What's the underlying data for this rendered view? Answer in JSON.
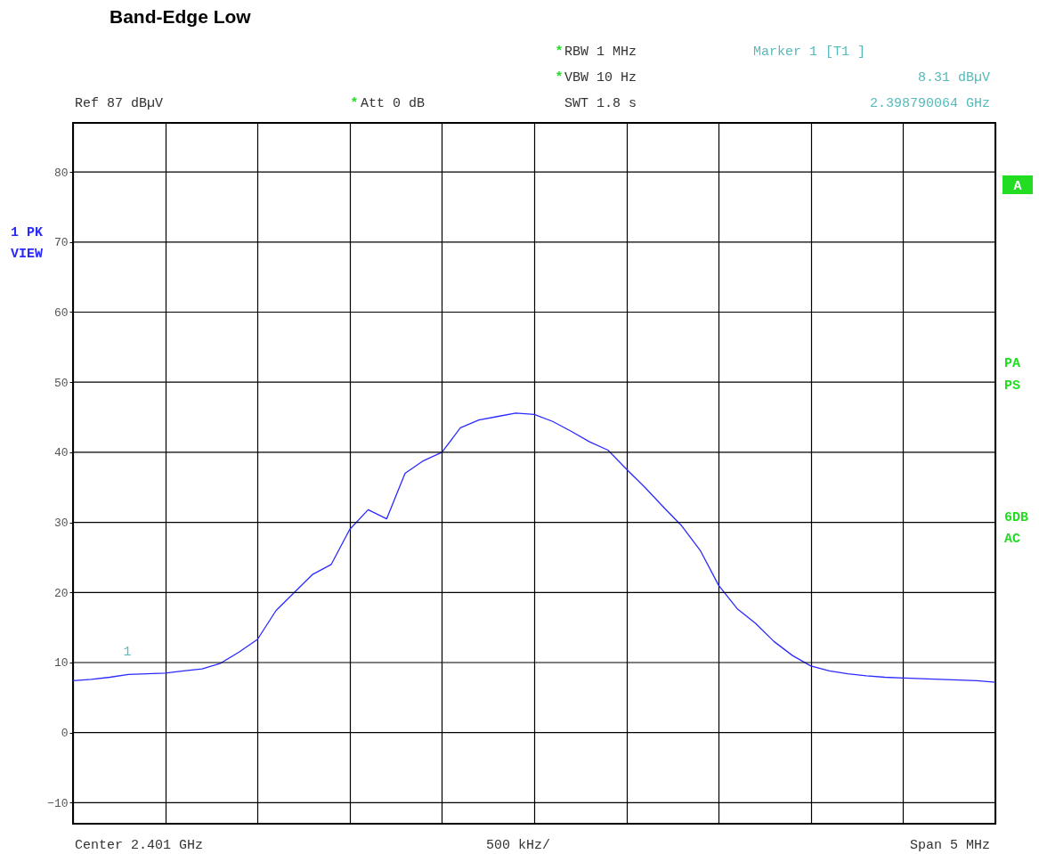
{
  "chart_data": {
    "type": "line",
    "title": "Band-Edge Low",
    "categories": [
      null,
      null,
      null,
      null,
      null,
      null,
      null,
      null,
      null,
      null,
      null,
      null,
      null,
      null,
      null,
      null,
      null,
      null,
      null,
      null,
      null,
      null,
      null,
      null,
      null,
      null,
      null,
      null,
      null,
      null,
      null,
      null,
      null,
      null,
      null,
      null,
      null,
      null,
      null,
      null,
      null,
      null,
      null,
      null,
      null,
      null,
      null,
      null,
      null,
      null,
      null
    ],
    "series": [
      {
        "color": "#2a2aff",
        "values": [
          7.4,
          7.6,
          7.9,
          8.3,
          8.4,
          8.5,
          8.8,
          9.1,
          9.9,
          11.5,
          13.3,
          17.4,
          20,
          22.6,
          24,
          29,
          31.8,
          30.5,
          37,
          38.8,
          40,
          43.5,
          44.6,
          45.1,
          45.6,
          45.4,
          44.4,
          43,
          41.5,
          40.3,
          37.6,
          35,
          32.2,
          29.5,
          26,
          21,
          17.7,
          15.6,
          13,
          11,
          9.5,
          8.8,
          8.4,
          8.1,
          7.9,
          7.8,
          7.7,
          7.6,
          7.5,
          7.4,
          7.2
        ]
      }
    ],
    "ylim": [
      -13,
      87
    ],
    "yticks": [
      -10,
      0,
      10,
      20,
      30,
      40,
      50,
      60,
      70,
      80
    ],
    "tick_labels": "y",
    "grid": true,
    "marker": "none",
    "line_style": "solid",
    "annotations": [
      "*",
      "RBW 1 MHz",
      "*",
      "VBW 10 Hz",
      "SWT 1.8 s",
      "Marker 1 [T1 ]",
      "8.31 dBµV",
      "2.398790064 GHz",
      "Ref 87 dBµV",
      "*",
      "Att 0 dB",
      "1 PK",
      "VIEW",
      "A",
      "PA",
      "PS",
      "6DB",
      "AC",
      "Center 2.401 GHz",
      "500 kHz/",
      "Span 5 MHz",
      "1"
    ]
  }
}
